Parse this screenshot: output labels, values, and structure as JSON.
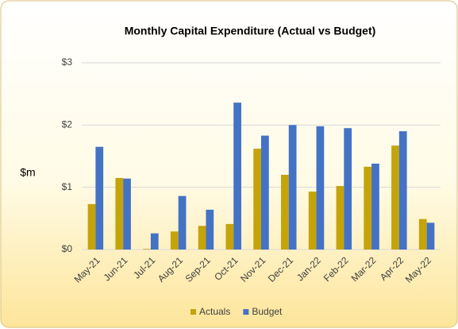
{
  "chart_data": {
    "type": "bar",
    "title": "Monthly Capital Expenditure (Actual vs Budget)",
    "y_label": "$m",
    "categories": [
      "May-21",
      "Jun-21",
      "Jul-21",
      "Aug-21",
      "Sep-21",
      "Oct-21",
      "Nov-21",
      "Dec-21",
      "Jan-22",
      "Feb-22",
      "Mar-22",
      "Apr-22",
      "May-22"
    ],
    "series": [
      {
        "name": "Actuals",
        "color": "#c5a30a",
        "values": [
          0.73,
          1.15,
          0.01,
          0.29,
          0.38,
          0.41,
          1.62,
          1.2,
          0.93,
          1.02,
          1.33,
          1.67,
          0.49
        ]
      },
      {
        "name": "Budget",
        "color": "#4472c4",
        "values": [
          1.65,
          1.14,
          0.26,
          0.86,
          0.64,
          2.36,
          1.83,
          2.0,
          1.98,
          1.95,
          1.38,
          1.9,
          0.43
        ]
      }
    ],
    "ylim": [
      0,
      3
    ],
    "yticks": [
      {
        "value": 0,
        "label": "$0"
      },
      {
        "value": 1,
        "label": "$1"
      },
      {
        "value": 2,
        "label": "$2"
      },
      {
        "value": 3,
        "label": "$3"
      }
    ],
    "grid": true,
    "legend": "bottom"
  }
}
